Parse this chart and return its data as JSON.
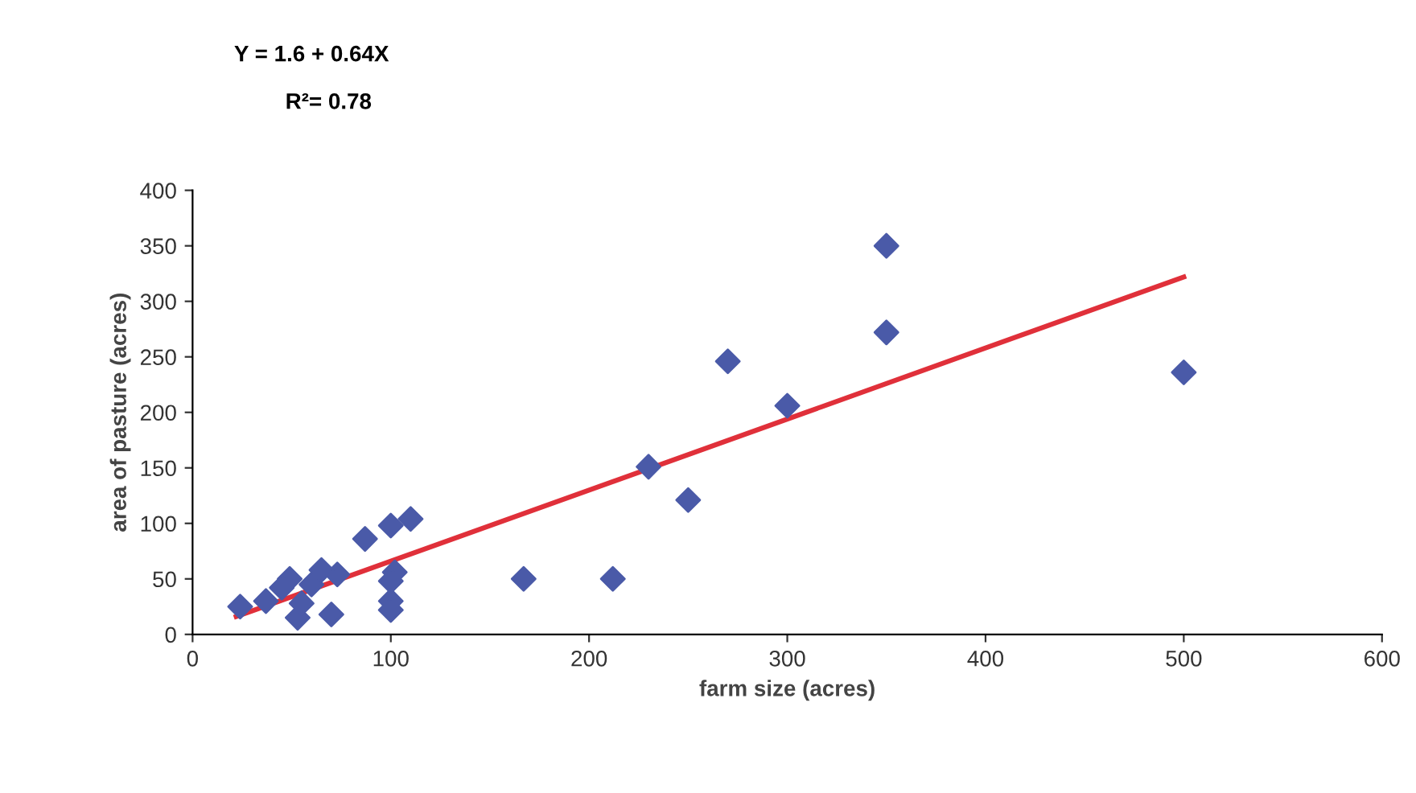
{
  "chart_data": {
    "type": "scatter",
    "xlabel": "farm size (acres)",
    "ylabel": "area of pasture (acres)",
    "annotations": [
      "Y = 1.6 + 0.64X",
      "R²= 0.78"
    ],
    "xlim": [
      0,
      600
    ],
    "xticks": [
      0,
      100,
      200,
      300,
      400,
      500,
      600
    ],
    "ylim": [
      0,
      400
    ],
    "yticks": [
      0,
      50,
      100,
      150,
      200,
      250,
      300,
      350,
      400
    ],
    "grid": false,
    "legend": false,
    "series": [
      {
        "marker": "diamond",
        "color": "#4a5aa8",
        "x": [
          350,
          350,
          270,
          500,
          300,
          230,
          250,
          167,
          212,
          110,
          100,
          87,
          102,
          100,
          100,
          100,
          73,
          49,
          70,
          53,
          24,
          37,
          45,
          60,
          55,
          65
        ],
        "values": [
          350,
          272,
          246,
          236,
          206,
          151,
          121,
          50,
          50,
          104,
          98,
          86,
          56,
          48,
          30,
          22,
          54,
          50,
          18,
          15,
          25,
          30,
          42,
          45,
          28,
          58
        ]
      },
      {
        "type": "line",
        "marker": "none",
        "color": "#e0303a",
        "x": [
          22,
          500
        ],
        "values": [
          16,
          322
        ]
      }
    ]
  }
}
